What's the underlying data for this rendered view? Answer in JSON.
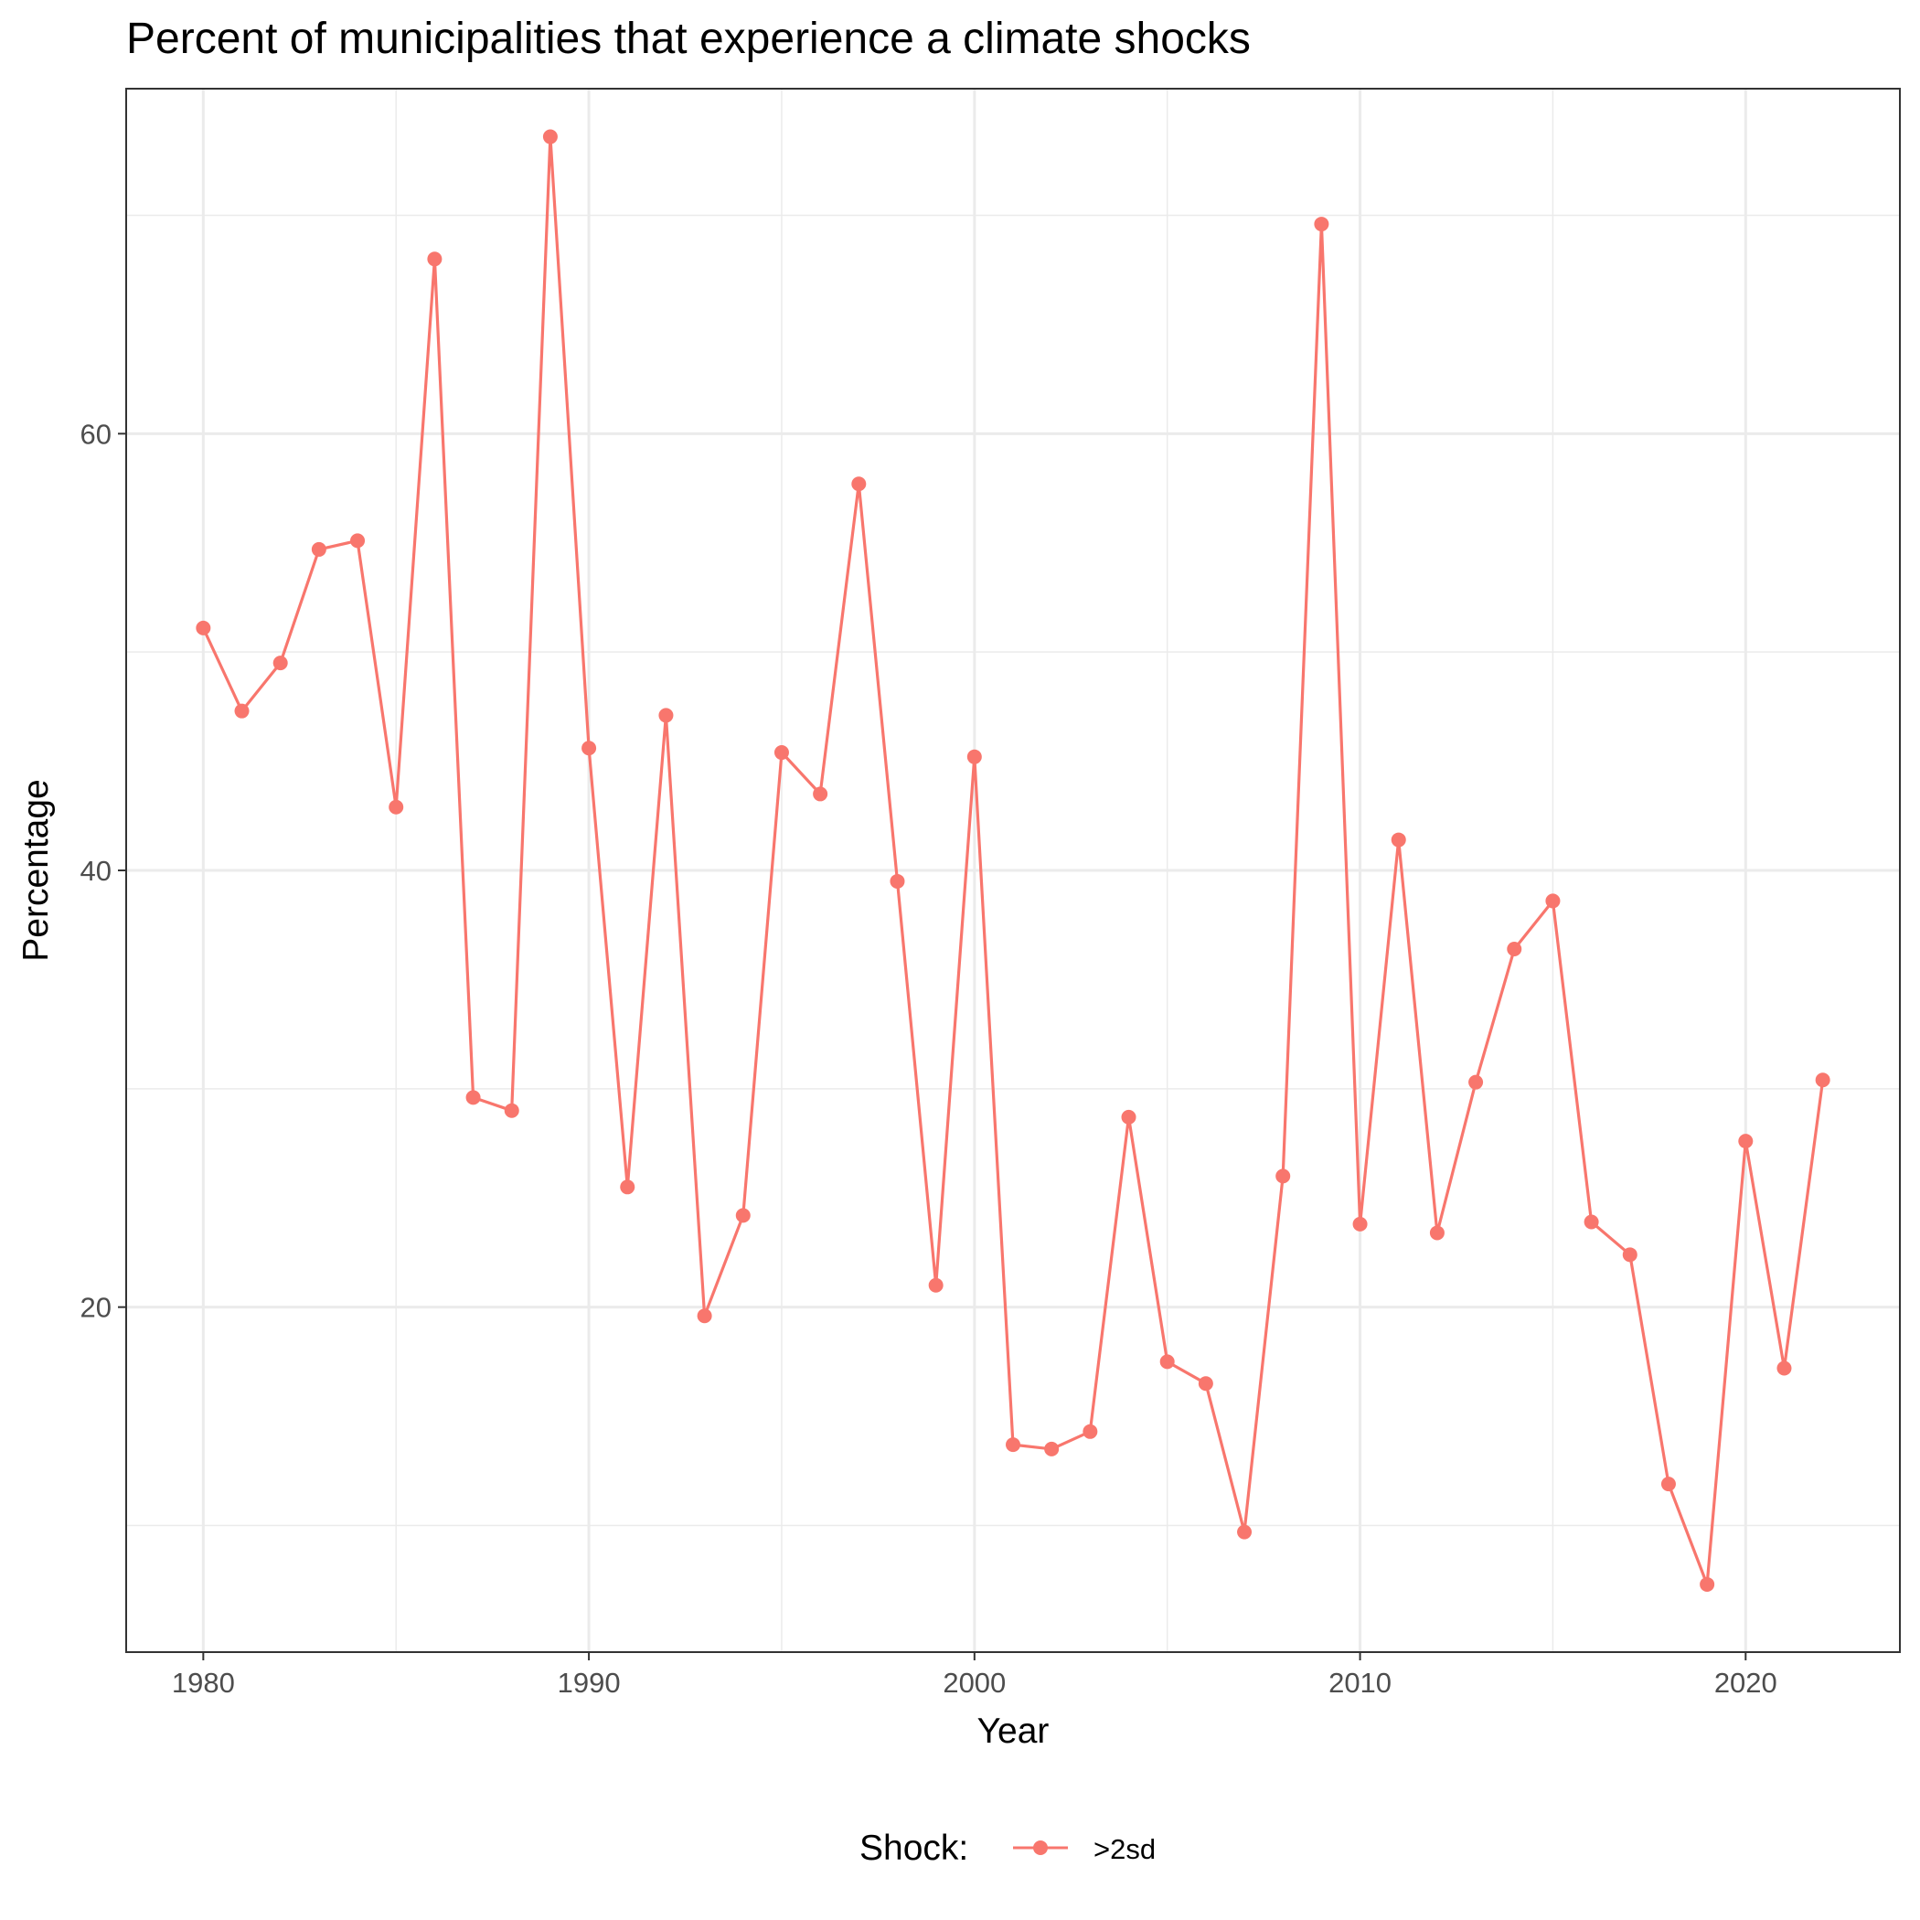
{
  "chart_data": {
    "type": "line",
    "title": "Percent of municipalities that experience a climate shocks",
    "xlabel": "Year",
    "ylabel": "Percentage",
    "xlim": [
      1978,
      2024
    ],
    "ylim": [
      4.2,
      75.8
    ],
    "x_ticks": [
      1980,
      1990,
      2000,
      2010,
      2020
    ],
    "x_tick_labels": [
      "1980",
      "1990",
      "2000",
      "2010",
      "2020"
    ],
    "x_minor_ticks": [
      1985,
      1995,
      2005,
      2015
    ],
    "y_ticks": [
      20,
      40,
      60
    ],
    "y_tick_labels": [
      "20",
      "40",
      "60"
    ],
    "y_minor_ticks": [
      10,
      30,
      50,
      70
    ],
    "grid": true,
    "legend": {
      "title": "Shock:",
      "position": "bottom"
    },
    "x": [
      1980,
      1981,
      1982,
      1983,
      1984,
      1985,
      1986,
      1987,
      1988,
      1989,
      1990,
      1991,
      1992,
      1993,
      1994,
      1995,
      1996,
      1997,
      1998,
      1999,
      2000,
      2001,
      2002,
      2003,
      2004,
      2005,
      2006,
      2007,
      2008,
      2009,
      2010,
      2011,
      2012,
      2013,
      2014,
      2015,
      2016,
      2017,
      2018,
      2019,
      2020,
      2021,
      2022
    ],
    "series": [
      {
        "name": ">2sd",
        "color": "#F8766D",
        "values": [
          51.1,
          47.3,
          49.5,
          54.7,
          55.1,
          42.9,
          68.0,
          29.6,
          29.0,
          73.6,
          45.6,
          25.5,
          47.1,
          19.6,
          24.2,
          45.4,
          43.5,
          57.7,
          39.5,
          21.0,
          45.2,
          13.7,
          13.5,
          14.3,
          28.7,
          17.5,
          16.5,
          9.7,
          26.0,
          69.6,
          23.8,
          41.4,
          23.4,
          30.3,
          36.4,
          38.6,
          23.9,
          22.4,
          11.9,
          7.3,
          27.6,
          17.2,
          30.4
        ]
      }
    ]
  }
}
